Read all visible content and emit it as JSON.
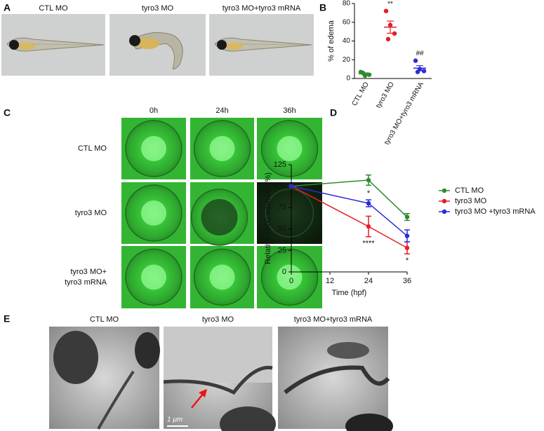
{
  "figure": {
    "panel_labels": [
      "A",
      "B",
      "C",
      "D",
      "E"
    ],
    "a": {
      "labels": [
        "CTL MO",
        "tyro3 MO",
        "tyro3 MO+tyro3 mRNA"
      ]
    },
    "c": {
      "columns": [
        "0h",
        "24h",
        "36h"
      ],
      "rows": [
        [
          "CTL MO"
        ],
        [
          "tyro3 MO"
        ],
        [
          "tyro3 MO+",
          "tyro3 mRNA"
        ]
      ]
    },
    "e": {
      "labels": [
        "CTL MO",
        "tyro3 MO",
        "tyro3 MO+tyro3 mRNA"
      ],
      "scale_bar": "1 μm"
    }
  },
  "chart_data": [
    {
      "type": "dot",
      "ylabel": "% of edema",
      "categories": [
        "CTL MO",
        "tyro3 MO",
        "tyro3 MO+tyro3 mRNA"
      ],
      "colors": [
        "#2e8b2e",
        "#e41f26",
        "#2b2bd9"
      ],
      "points": [
        [
          7,
          3,
          4,
          6
        ],
        [
          72,
          57,
          48,
          42
        ],
        [
          19,
          10,
          8,
          7
        ]
      ],
      "means": [
        5,
        54.75,
        11
      ],
      "errors": [
        1,
        6.5,
        2.7
      ],
      "annotations": [
        null,
        "**",
        "##"
      ],
      "ylim": [
        0,
        80
      ],
      "yticks": [
        0,
        20,
        40,
        60,
        80
      ]
    },
    {
      "type": "line",
      "xlabel": "Time (hpf)",
      "ylabel": "Relative FITC intensity (%)",
      "x": [
        0,
        24,
        36
      ],
      "xlim": [
        0,
        36
      ],
      "xticks": [
        0,
        12,
        24,
        36
      ],
      "ylim": [
        0,
        125
      ],
      "yticks": [
        0,
        25,
        50,
        75,
        100,
        125
      ],
      "series": [
        {
          "name": "CTL MO",
          "color": "#2e8b2e",
          "values": [
            100,
            107,
            64
          ],
          "errors": [
            0,
            6,
            4
          ]
        },
        {
          "name": "tyro3 MO",
          "color": "#e41f26",
          "values": [
            100,
            53,
            28
          ],
          "errors": [
            0,
            12,
            7
          ],
          "annotations": [
            null,
            "****",
            "*"
          ]
        },
        {
          "name": "tyro3 MO +tyro3 mRNA",
          "color": "#2b2bd9",
          "values": [
            100,
            80,
            42
          ],
          "errors": [
            0,
            4,
            7
          ],
          "annotations": [
            null,
            "*",
            null
          ]
        }
      ]
    }
  ]
}
